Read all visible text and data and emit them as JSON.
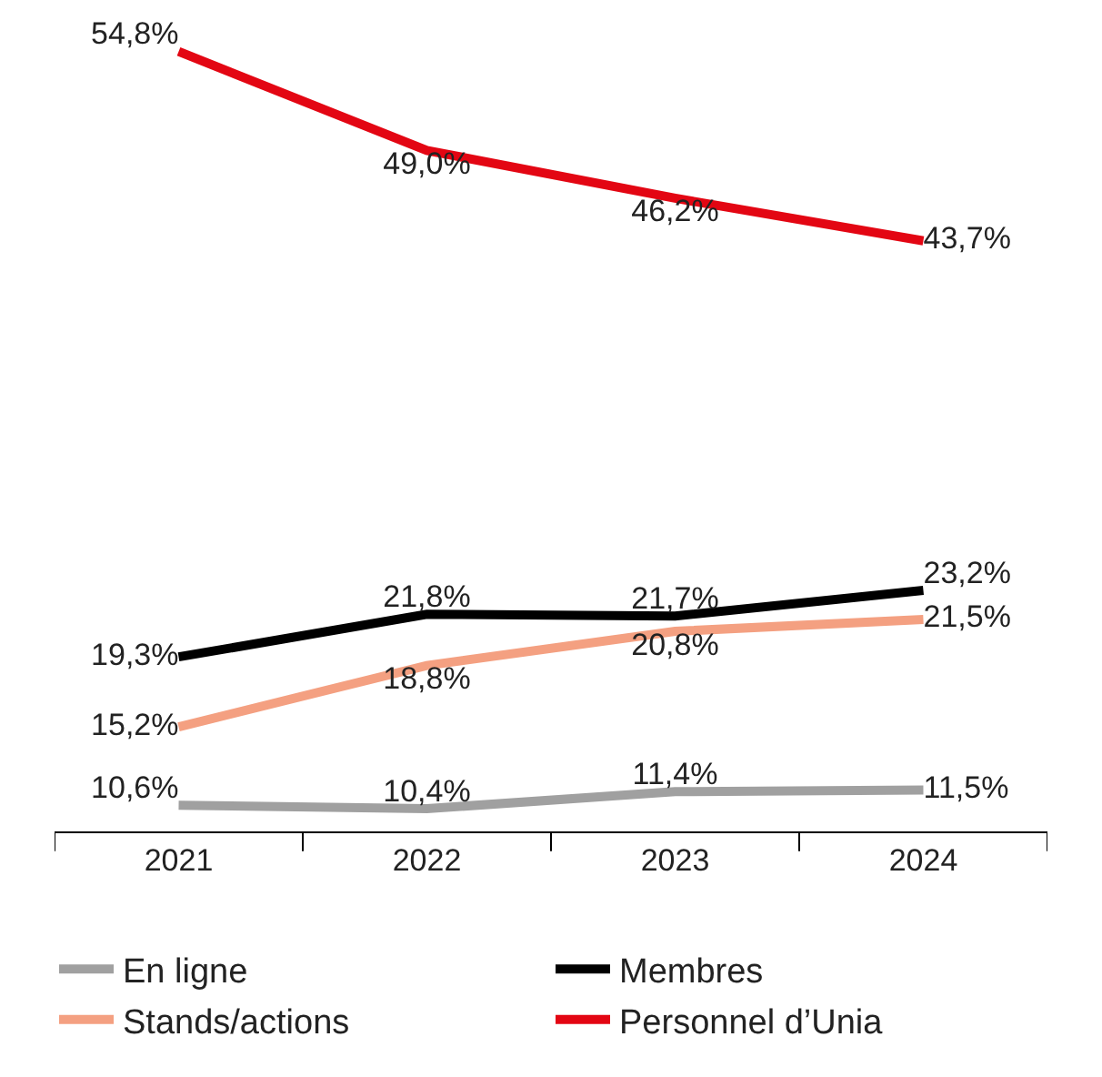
{
  "chart_data": {
    "type": "line",
    "categories": [
      "2021",
      "2022",
      "2023",
      "2024"
    ],
    "series": [
      {
        "name": "En ligne",
        "color": "#a0a0a0",
        "values": [
          10.6,
          10.4,
          11.4,
          11.5
        ],
        "value_labels": [
          "10,6%",
          "10,4%",
          "11,4%",
          "11,5%"
        ]
      },
      {
        "name": "Membres",
        "color": "#000000",
        "values": [
          19.3,
          21.8,
          21.7,
          23.2
        ],
        "value_labels": [
          "19,3%",
          "21,8%",
          "21,7%",
          "23,2%"
        ]
      },
      {
        "name": "Stands/actions",
        "color": "#f4a081",
        "values": [
          15.2,
          18.8,
          20.8,
          21.5
        ],
        "value_labels": [
          "15,2%",
          "18,8%",
          "20,8%",
          "21,5%"
        ]
      },
      {
        "name": "Personnel d’Unia",
        "color": "#e30613",
        "values": [
          54.8,
          49.0,
          46.2,
          43.7
        ],
        "value_labels": [
          "54,8%",
          "49,0%",
          "46,2%",
          "43,7%"
        ]
      }
    ],
    "legend": "bottom",
    "marker": "none",
    "line_style": "solid"
  }
}
